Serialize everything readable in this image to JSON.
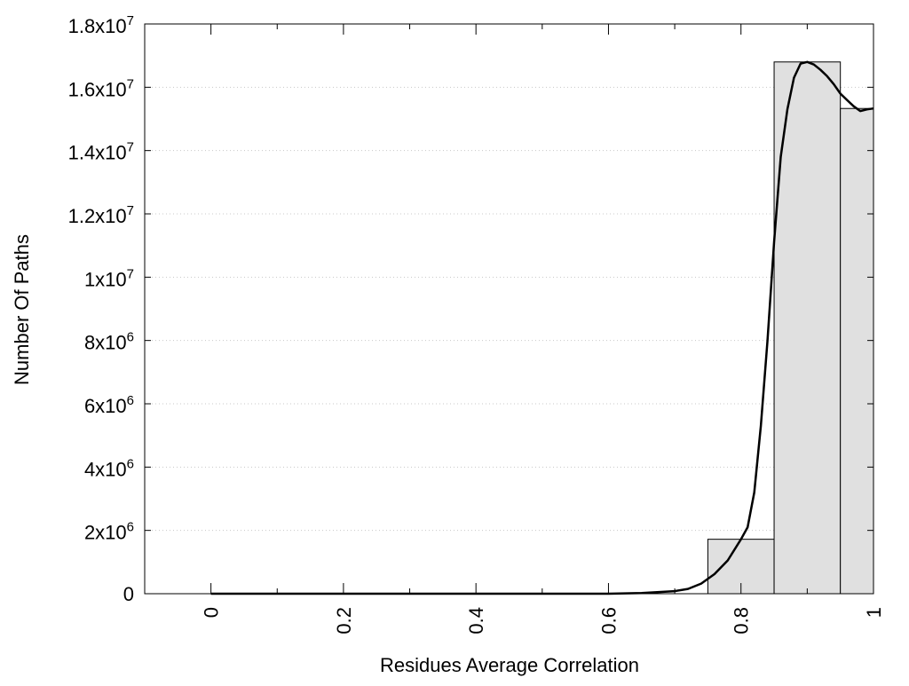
{
  "chart_data": {
    "type": "bar",
    "title": "",
    "xlabel": "Residues Average Correlation",
    "ylabel": "Number Of Paths",
    "xlim": [
      -0.1,
      1.0
    ],
    "ylim": [
      0,
      18000000
    ],
    "grid": "horizontal-dotted",
    "legend": "none",
    "x_ticks": [
      0,
      0.2,
      0.4,
      0.6,
      0.8,
      1
    ],
    "x_tick_labels": [
      "0",
      "0.2",
      "0.4",
      "0.6",
      "0.8",
      "1"
    ],
    "x_minor_ticks": [
      0.1,
      0.3,
      0.5,
      0.7,
      0.9
    ],
    "y_ticks": [
      0,
      2000000,
      4000000,
      6000000,
      8000000,
      10000000,
      12000000,
      14000000,
      16000000,
      18000000
    ],
    "y_tick_labels": [
      {
        "base": "0",
        "exp": ""
      },
      {
        "base": "2x10",
        "exp": "6"
      },
      {
        "base": "4x10",
        "exp": "6"
      },
      {
        "base": "6x10",
        "exp": "6"
      },
      {
        "base": "8x10",
        "exp": "6"
      },
      {
        "base": "1x10",
        "exp": "7"
      },
      {
        "base": "1.2x10",
        "exp": "7"
      },
      {
        "base": "1.4x10",
        "exp": "7"
      },
      {
        "base": "1.6x10",
        "exp": "7"
      },
      {
        "base": "1.8x10",
        "exp": "7"
      }
    ],
    "bins": [
      {
        "x0": 0.75,
        "x1": 0.85,
        "value": 1720000
      },
      {
        "x0": 0.85,
        "x1": 0.95,
        "value": 16800000
      },
      {
        "x0": 0.95,
        "x1": 1.0,
        "value": 15330000
      }
    ],
    "series": [
      {
        "type": "line",
        "x": [
          0.0,
          0.1,
          0.2,
          0.3,
          0.4,
          0.5,
          0.6,
          0.65,
          0.7,
          0.72,
          0.74,
          0.76,
          0.78,
          0.8,
          0.81,
          0.82,
          0.83,
          0.84,
          0.85,
          0.86,
          0.87,
          0.88,
          0.89,
          0.9,
          0.91,
          0.92,
          0.93,
          0.94,
          0.95,
          0.96,
          0.97,
          0.98,
          0.99,
          1.0
        ],
        "y": [
          0,
          0,
          0,
          0,
          0,
          0,
          0,
          20000,
          80000,
          150000,
          320000,
          620000,
          1050000,
          1720000,
          2100000,
          3200000,
          5300000,
          8000000,
          11100000,
          13800000,
          15300000,
          16300000,
          16750000,
          16800000,
          16720000,
          16550000,
          16350000,
          16100000,
          15800000,
          15600000,
          15400000,
          15250000,
          15300000,
          15330000
        ]
      }
    ],
    "colors": {
      "bar_fill": "#e0e0e0",
      "bar_stroke": "#000000",
      "line": "#000000",
      "grid": "#c8c8c8"
    }
  }
}
